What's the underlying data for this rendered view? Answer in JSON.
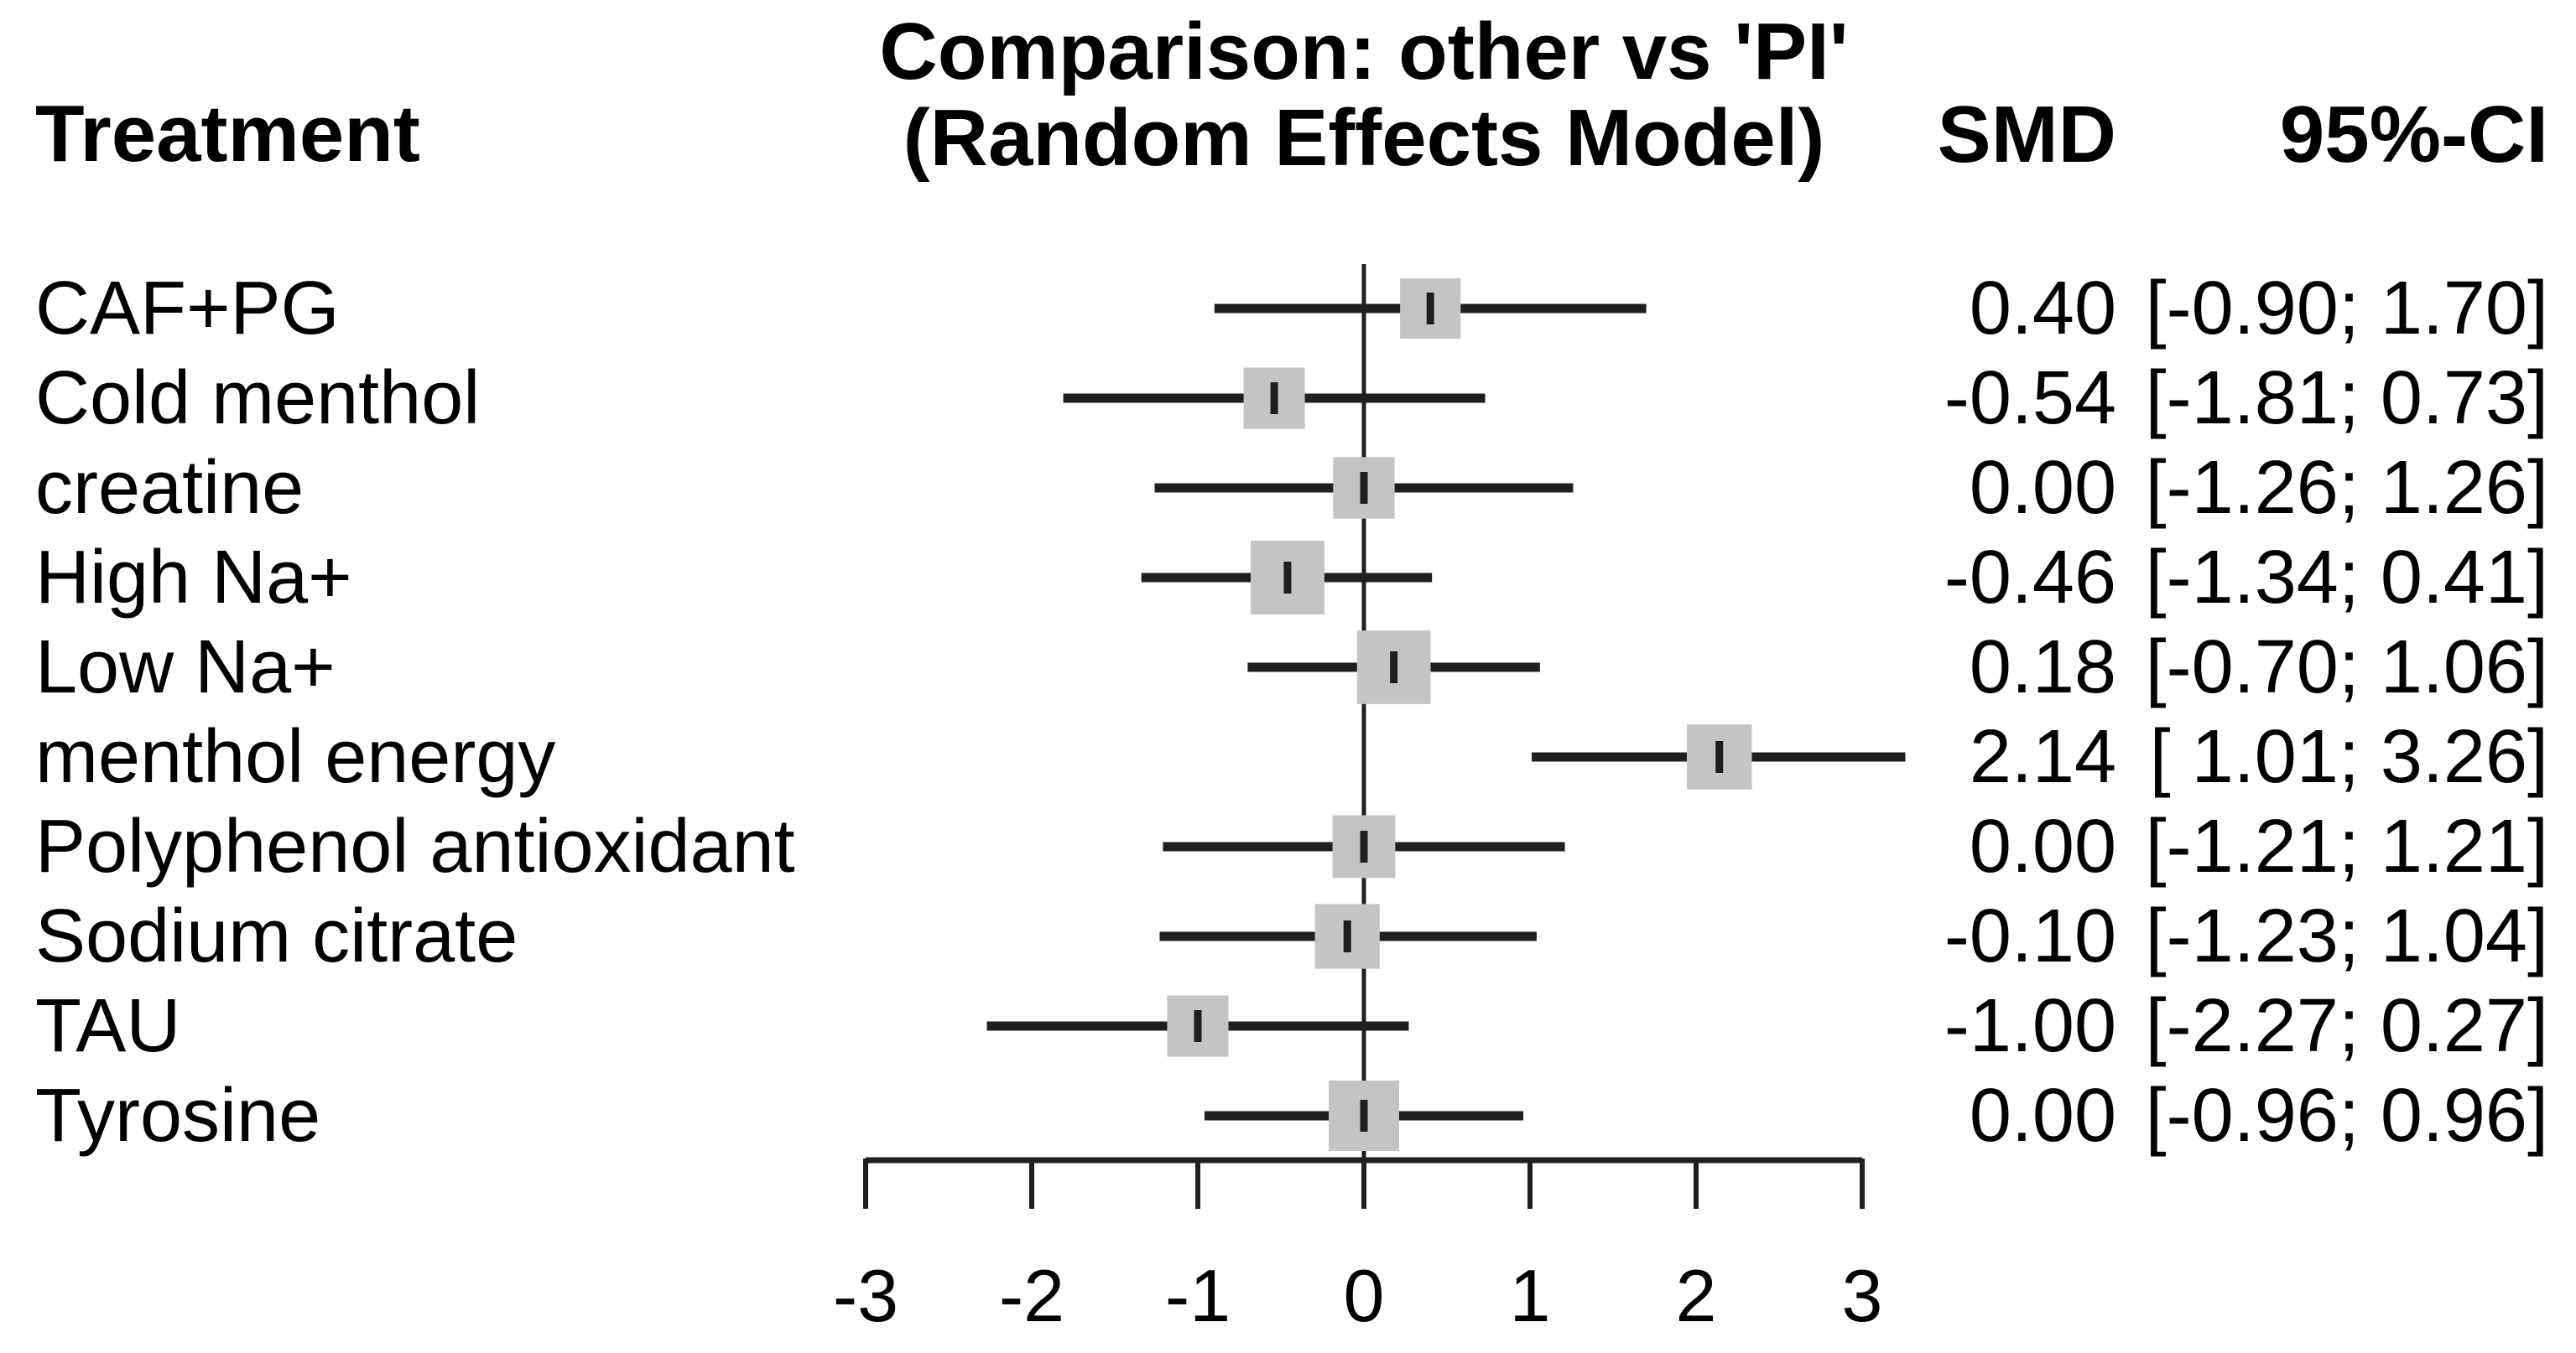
{
  "header": {
    "treatment": "Treatment",
    "title_line1": "Comparison: other vs 'PI'",
    "title_line2": "(Random Effects Model)",
    "smd": "SMD",
    "ci": "95%-CI"
  },
  "colors": {
    "background": "#ffffff",
    "text": "#000000",
    "line": "#1f1f1f",
    "square": "#c4c4c4"
  },
  "chart_data": {
    "type": "forest",
    "title": "Comparison: other vs 'PI' (Random Effects Model)",
    "columns": [
      "Treatment",
      "SMD",
      "95%-CI"
    ],
    "x_axis": {
      "ticks": [
        -3,
        -2,
        -1,
        0,
        1,
        2,
        3
      ],
      "tick_labels": [
        "-3",
        "-2",
        "-1",
        "0",
        "1",
        "2",
        "3"
      ],
      "range": [
        -3,
        3
      ],
      "reference_line": 0,
      "grid": false
    },
    "rows": [
      {
        "treatment": "CAF+PG",
        "smd": 0.4,
        "ci_lower": -0.9,
        "ci_upper": 1.7,
        "smd_text": "0.40",
        "ci_text": "[-0.90; 1.70]"
      },
      {
        "treatment": "Cold menthol",
        "smd": -0.54,
        "ci_lower": -1.81,
        "ci_upper": 0.73,
        "smd_text": "-0.54",
        "ci_text": "[-1.81; 0.73]"
      },
      {
        "treatment": "creatine",
        "smd": 0.0,
        "ci_lower": -1.26,
        "ci_upper": 1.26,
        "smd_text": "0.00",
        "ci_text": "[-1.26; 1.26]"
      },
      {
        "treatment": "High Na+",
        "smd": -0.46,
        "ci_lower": -1.34,
        "ci_upper": 0.41,
        "smd_text": "-0.46",
        "ci_text": "[-1.34; 0.41]"
      },
      {
        "treatment": "Low Na+",
        "smd": 0.18,
        "ci_lower": -0.7,
        "ci_upper": 1.06,
        "smd_text": "0.18",
        "ci_text": "[-0.70; 1.06]"
      },
      {
        "treatment": "menthol energy",
        "smd": 2.14,
        "ci_lower": 1.01,
        "ci_upper": 3.26,
        "smd_text": "2.14",
        "ci_text": "[ 1.01; 3.26]"
      },
      {
        "treatment": "Polyphenol antioxidant",
        "smd": 0.0,
        "ci_lower": -1.21,
        "ci_upper": 1.21,
        "smd_text": "0.00",
        "ci_text": "[-1.21; 1.21]"
      },
      {
        "treatment": "Sodium citrate",
        "smd": -0.1,
        "ci_lower": -1.23,
        "ci_upper": 1.04,
        "smd_text": "-0.10",
        "ci_text": "[-1.23; 1.04]"
      },
      {
        "treatment": "TAU",
        "smd": -1.0,
        "ci_lower": -2.27,
        "ci_upper": 0.27,
        "smd_text": "-1.00",
        "ci_text": "[-2.27; 0.27]"
      },
      {
        "treatment": "Tyrosine",
        "smd": 0.0,
        "ci_lower": -0.96,
        "ci_upper": 0.96,
        "smd_text": "0.00",
        "ci_text": "[-0.96; 0.96]"
      }
    ]
  }
}
